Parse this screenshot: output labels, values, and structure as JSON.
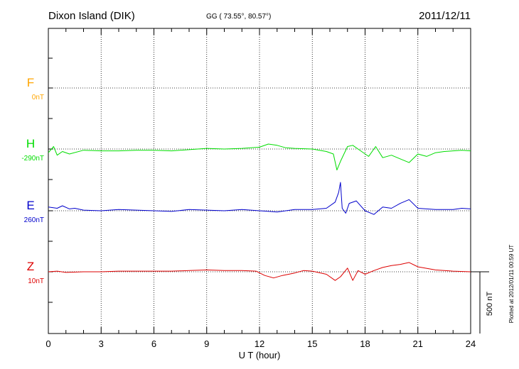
{
  "header": {
    "station": "Dixon Island (DIK)",
    "coords": "GG ( 73.55°,  80.57°)",
    "date": "2011/12/11"
  },
  "plotted_note": "Plotted at 2012/01/11 00:59 UT",
  "scale_label": "500 nT",
  "chart_data": {
    "type": "line",
    "xlabel": "U T (hour)",
    "xlim": [
      0,
      24
    ],
    "x_ticks": [
      "0",
      "3",
      "6",
      "9",
      "12",
      "15",
      "18",
      "21",
      "24"
    ],
    "scale_nT_per_bar": 500,
    "components": [
      {
        "name": "F",
        "offset_label": "0nT",
        "color": "#ffa500"
      },
      {
        "name": "H",
        "offset_label": "-290nT",
        "color": "#00dd00"
      },
      {
        "name": "E",
        "offset_label": "260nT",
        "color": "#0000cc"
      },
      {
        "name": "Z",
        "offset_label": "10nT",
        "color": "#dd0000"
      }
    ],
    "series": [
      {
        "name": "H",
        "x": [
          0,
          0.3,
          0.5,
          0.8,
          1.2,
          2,
          3,
          4,
          5,
          6,
          7,
          8,
          9,
          10,
          11,
          12,
          12.5,
          13,
          13.5,
          14,
          15,
          15.8,
          16.2,
          16.4,
          16.6,
          16.8,
          17,
          17.3,
          17.8,
          18.2,
          18.6,
          19,
          19.5,
          20,
          20.5,
          21,
          21.5,
          22,
          22.5,
          23,
          23.5,
          24
        ],
        "y": [
          -30,
          20,
          -50,
          -20,
          -40,
          -10,
          -15,
          -15,
          -10,
          -10,
          -15,
          -5,
          5,
          0,
          5,
          15,
          40,
          30,
          10,
          5,
          0,
          -20,
          -40,
          -170,
          -100,
          -40,
          20,
          30,
          -20,
          -60,
          20,
          -70,
          -50,
          -80,
          -110,
          -40,
          -60,
          -30,
          -20,
          -15,
          -10,
          -15
        ]
      },
      {
        "name": "E",
        "x": [
          0,
          0.5,
          0.8,
          1.2,
          1.5,
          2,
          3,
          4,
          5,
          6,
          7,
          8,
          9,
          10,
          11,
          12,
          13,
          14,
          15,
          15.8,
          16.3,
          16.5,
          16.6,
          16.7,
          16.9,
          17.1,
          17.5,
          18,
          18.5,
          19,
          19.5,
          20,
          20.5,
          21,
          22,
          23,
          23.5,
          24
        ],
        "y": [
          30,
          20,
          40,
          15,
          20,
          5,
          0,
          10,
          5,
          0,
          -5,
          10,
          5,
          0,
          10,
          0,
          -10,
          10,
          10,
          20,
          70,
          150,
          230,
          20,
          -20,
          60,
          80,
          0,
          -30,
          30,
          20,
          60,
          90,
          20,
          10,
          10,
          20,
          15
        ]
      },
      {
        "name": "Z",
        "x": [
          0,
          0.5,
          1,
          2,
          3,
          4,
          5,
          6,
          7,
          8,
          9,
          10,
          11,
          11.8,
          12.3,
          12.8,
          13.3,
          14,
          14.5,
          15,
          15.8,
          16.3,
          16.6,
          17,
          17.3,
          17.6,
          18,
          18.5,
          19,
          19.5,
          20,
          20.5,
          21,
          22,
          23,
          24
        ],
        "y": [
          0,
          5,
          -5,
          0,
          0,
          5,
          5,
          5,
          5,
          10,
          15,
          10,
          10,
          5,
          -30,
          -50,
          -30,
          -10,
          10,
          5,
          -20,
          -70,
          -40,
          30,
          -70,
          10,
          -20,
          10,
          35,
          50,
          60,
          75,
          40,
          15,
          5,
          0
        ]
      }
    ]
  }
}
